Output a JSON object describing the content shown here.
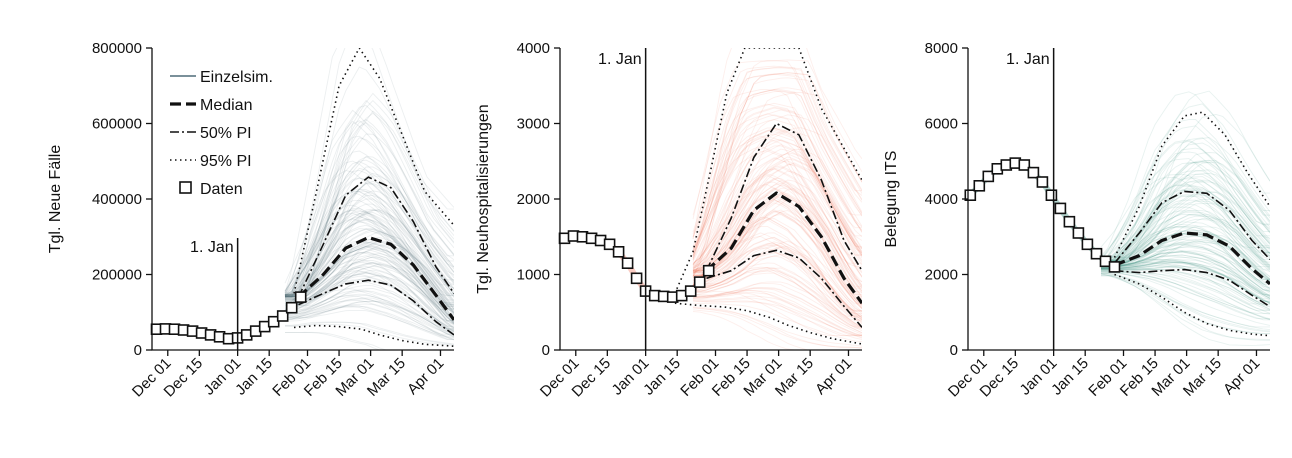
{
  "chart_data": [
    {
      "type": "line",
      "ylabel": "Tgl. Neue Fälle",
      "xlabel": "",
      "x_ticks": [
        "Dec 01",
        "Dec 15",
        "Jan 01",
        "Jan 15",
        "Feb 01",
        "Feb 15",
        "Mar 01",
        "Mar 15",
        "Apr 01"
      ],
      "y_ticks": [
        "0",
        "200000",
        "400000",
        "600000",
        "800000"
      ],
      "ylim": [
        0,
        800000
      ],
      "xlim": [
        "2021-11-24",
        "2022-04-07"
      ],
      "annotation": {
        "text": "1. Jan",
        "x": "2022-01-01"
      },
      "ensemble_color": "#4f6b78",
      "legend": {
        "placement": "top-left",
        "entries": [
          {
            "label": "Einzelsim.",
            "style": "thin-solid"
          },
          {
            "label": "Median",
            "style": "bold-dashed"
          },
          {
            "label": "50% PI",
            "style": "dash-dot"
          },
          {
            "label": "95% PI",
            "style": "dotted"
          },
          {
            "label": "Daten",
            "style": "square-marker"
          }
        ]
      },
      "series": [
        {
          "name": "Median",
          "x": [
            "2022-01-28",
            "2022-02-08",
            "2022-02-18",
            "2022-02-28",
            "2022-03-10",
            "2022-03-20",
            "2022-03-30",
            "2022-04-07"
          ],
          "values": [
            140000,
            200000,
            270000,
            298000,
            280000,
            225000,
            145000,
            80000
          ]
        },
        {
          "name": "50% PI",
          "x": [
            "2022-01-28",
            "2022-02-08",
            "2022-02-18",
            "2022-02-28",
            "2022-03-10",
            "2022-03-20",
            "2022-03-30",
            "2022-04-07"
          ],
          "values": [
            140000,
            280000,
            410000,
            458000,
            430000,
            340000,
            220000,
            150000
          ]
        },
        {
          "name": "50% PI",
          "x": [
            "2022-01-28",
            "2022-02-08",
            "2022-02-18",
            "2022-02-28",
            "2022-03-10",
            "2022-03-20",
            "2022-03-30",
            "2022-04-07"
          ],
          "values": [
            120000,
            150000,
            175000,
            185000,
            172000,
            130000,
            75000,
            40000
          ]
        },
        {
          "name": "95% PI",
          "x": [
            "2022-01-26",
            "2022-02-05",
            "2022-02-15",
            "2022-02-24",
            "2022-03-05",
            "2022-03-15",
            "2022-03-25",
            "2022-04-07"
          ],
          "values": [
            150000,
            420000,
            700000,
            800000,
            720000,
            570000,
            420000,
            330000
          ]
        },
        {
          "name": "95% PI",
          "x": [
            "2022-01-26",
            "2022-02-05",
            "2022-02-15",
            "2022-02-25",
            "2022-03-05",
            "2022-03-15",
            "2022-03-25",
            "2022-04-07"
          ],
          "values": [
            60000,
            65000,
            62000,
            55000,
            40000,
            25000,
            15000,
            10000
          ]
        },
        {
          "name": "Daten",
          "x": [
            "2021-11-26",
            "2021-11-30",
            "2021-12-04",
            "2021-12-08",
            "2021-12-12",
            "2021-12-16",
            "2021-12-20",
            "2021-12-24",
            "2021-12-28",
            "2022-01-01",
            "2022-01-05",
            "2022-01-09",
            "2022-01-13",
            "2022-01-17",
            "2022-01-21",
            "2022-01-25",
            "2022-01-29"
          ],
          "values": [
            55000,
            56000,
            55000,
            53000,
            50000,
            45000,
            40000,
            35000,
            30000,
            32000,
            40000,
            50000,
            62000,
            75000,
            90000,
            112000,
            140000
          ]
        }
      ]
    },
    {
      "type": "line",
      "ylabel": "Tgl. Neuhospitalisierungen",
      "xlabel": "",
      "x_ticks": [
        "Dec 01",
        "Dec 15",
        "Jan 01",
        "Jan 15",
        "Feb 01",
        "Feb 15",
        "Mar 01",
        "Mar 15",
        "Apr 01"
      ],
      "y_ticks": [
        "0",
        "1000",
        "2000",
        "3000",
        "4000"
      ],
      "ylim": [
        0,
        4000
      ],
      "xlim": [
        "2021-11-24",
        "2022-04-07"
      ],
      "annotation": {
        "text": "1. Jan",
        "x": "2022-01-01"
      },
      "ensemble_color": "#ef6b4f",
      "series": [
        {
          "name": "Median",
          "x": [
            "2022-01-28",
            "2022-02-08",
            "2022-02-18",
            "2022-02-28",
            "2022-03-10",
            "2022-03-20",
            "2022-03-30",
            "2022-04-07"
          ],
          "values": [
            1050,
            1350,
            1850,
            2080,
            1900,
            1500,
            950,
            620
          ]
        },
        {
          "name": "50% PI",
          "x": [
            "2022-01-28",
            "2022-02-08",
            "2022-02-18",
            "2022-02-28",
            "2022-03-10",
            "2022-03-20",
            "2022-03-30",
            "2022-04-07"
          ],
          "values": [
            1050,
            1750,
            2550,
            3000,
            2850,
            2250,
            1450,
            1050
          ]
        },
        {
          "name": "50% PI",
          "x": [
            "2022-01-28",
            "2022-02-08",
            "2022-02-18",
            "2022-02-28",
            "2022-03-10",
            "2022-03-20",
            "2022-03-30",
            "2022-04-07"
          ],
          "values": [
            950,
            1050,
            1250,
            1320,
            1220,
            950,
            580,
            300
          ]
        },
        {
          "name": "95% PI",
          "x": [
            "2022-01-14",
            "2022-01-22",
            "2022-01-30",
            "2022-02-06",
            "2022-02-14",
            "2022-02-20",
            "2022-03-10",
            "2022-03-20",
            "2022-04-07"
          ],
          "values": [
            750,
            1300,
            2400,
            3400,
            4000,
            4000,
            4000,
            3200,
            2250
          ]
        },
        {
          "name": "95% PI",
          "x": [
            "2022-01-14",
            "2022-01-25",
            "2022-02-05",
            "2022-02-15",
            "2022-02-25",
            "2022-03-05",
            "2022-03-15",
            "2022-03-25",
            "2022-04-07"
          ],
          "values": [
            620,
            590,
            570,
            520,
            430,
            330,
            230,
            150,
            80
          ]
        },
        {
          "name": "Daten",
          "x": [
            "2021-11-26",
            "2021-11-30",
            "2021-12-04",
            "2021-12-08",
            "2021-12-12",
            "2021-12-16",
            "2021-12-20",
            "2021-12-24",
            "2021-12-28",
            "2022-01-01",
            "2022-01-05",
            "2022-01-09",
            "2022-01-13",
            "2022-01-17",
            "2022-01-21",
            "2022-01-25",
            "2022-01-29"
          ],
          "values": [
            1480,
            1510,
            1500,
            1480,
            1450,
            1400,
            1300,
            1150,
            950,
            780,
            720,
            710,
            700,
            720,
            780,
            900,
            1050
          ]
        }
      ]
    },
    {
      "type": "line",
      "ylabel": "Belegung ITS",
      "xlabel": "",
      "x_ticks": [
        "Dec 01",
        "Dec 15",
        "Jan 01",
        "Jan 15",
        "Feb 01",
        "Feb 15",
        "Mar 01",
        "Mar 15",
        "Apr 01"
      ],
      "y_ticks": [
        "0",
        "2000",
        "4000",
        "6000",
        "8000"
      ],
      "ylim": [
        0,
        8000
      ],
      "xlim": [
        "2021-11-24",
        "2022-04-07"
      ],
      "annotation": {
        "text": "1. Jan",
        "x": "2022-01-01"
      },
      "ensemble_color": "#2e8b7a",
      "series": [
        {
          "name": "Median",
          "x": [
            "2022-01-28",
            "2022-02-08",
            "2022-02-18",
            "2022-02-28",
            "2022-03-10",
            "2022-03-20",
            "2022-03-30",
            "2022-04-07"
          ],
          "values": [
            2250,
            2500,
            2900,
            3100,
            3050,
            2750,
            2150,
            1750
          ]
        },
        {
          "name": "50% PI",
          "x": [
            "2022-01-28",
            "2022-02-08",
            "2022-02-18",
            "2022-02-28",
            "2022-03-10",
            "2022-03-20",
            "2022-03-30",
            "2022-04-07"
          ],
          "values": [
            2300,
            3100,
            3900,
            4200,
            4150,
            3700,
            2900,
            2400
          ]
        },
        {
          "name": "50% PI",
          "x": [
            "2022-01-28",
            "2022-02-08",
            "2022-02-18",
            "2022-02-28",
            "2022-03-10",
            "2022-03-20",
            "2022-03-30",
            "2022-04-07"
          ],
          "values": [
            2100,
            2050,
            2100,
            2130,
            2050,
            1850,
            1450,
            1150
          ]
        },
        {
          "name": "95% PI",
          "x": [
            "2022-01-28",
            "2022-02-08",
            "2022-02-18",
            "2022-02-28",
            "2022-03-08",
            "2022-03-18",
            "2022-03-28",
            "2022-04-07"
          ],
          "values": [
            2450,
            3800,
            5400,
            6200,
            6300,
            5700,
            4700,
            3800
          ]
        },
        {
          "name": "95% PI",
          "x": [
            "2022-01-28",
            "2022-02-08",
            "2022-02-18",
            "2022-02-28",
            "2022-03-10",
            "2022-03-20",
            "2022-03-30",
            "2022-04-07"
          ],
          "values": [
            2000,
            1750,
            1400,
            1000,
            700,
            520,
            420,
            380
          ]
        },
        {
          "name": "Daten",
          "x": [
            "2021-11-25",
            "2021-11-29",
            "2021-12-03",
            "2021-12-07",
            "2021-12-11",
            "2021-12-15",
            "2021-12-19",
            "2021-12-23",
            "2021-12-27",
            "2021-12-31",
            "2022-01-04",
            "2022-01-08",
            "2022-01-12",
            "2022-01-16",
            "2022-01-20",
            "2022-01-24",
            "2022-01-28"
          ],
          "values": [
            4100,
            4350,
            4600,
            4800,
            4900,
            4950,
            4900,
            4700,
            4450,
            4100,
            3750,
            3400,
            3100,
            2800,
            2550,
            2350,
            2200
          ]
        }
      ]
    }
  ]
}
